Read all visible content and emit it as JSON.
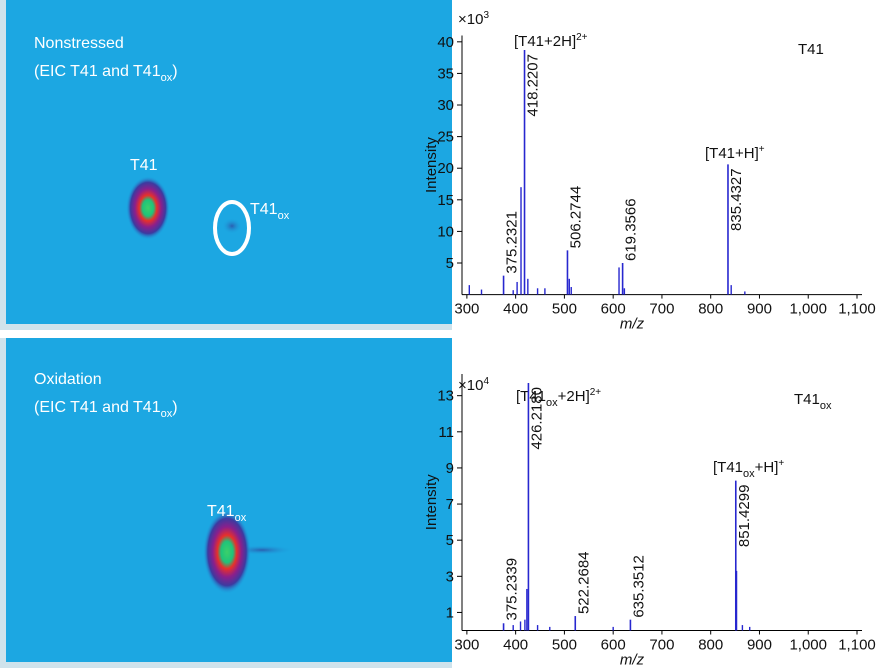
{
  "chart_data": [
    {
      "type": "image",
      "title": "Nonstressed",
      "subtitle": [
        "(EIC T41 and T41",
        "ox",
        ")"
      ],
      "labels": [
        [
          "T41"
        ],
        [
          "T41",
          "ox"
        ]
      ]
    },
    {
      "type": "spectrum",
      "title": [
        "T41"
      ],
      "multiplier": [
        "×10",
        "3"
      ],
      "ylabel": "Intensity",
      "xlabel": "m/z",
      "annotations": [
        [
          "[T41+2H]",
          "2+"
        ],
        [
          "[T41+H]",
          "+"
        ]
      ],
      "x": [
        375.2321,
        418.2207,
        506.2744,
        619.3566,
        835.4327
      ],
      "values": [
        3,
        38.7,
        7,
        5,
        20.6
      ],
      "x_labels": [
        "375.2321",
        "418.2207",
        "506.2744",
        "619.3566",
        "835.4327"
      ],
      "minor_x": [
        305,
        330,
        395,
        403,
        411,
        425,
        445,
        460,
        510,
        514,
        612,
        623,
        842,
        870
      ],
      "minor_values": [
        1.5,
        0.8,
        0.7,
        2,
        17,
        2.5,
        1,
        1,
        2.5,
        1.2,
        4.3,
        1,
        1.5,
        0.5
      ],
      "color": "#2727cf",
      "xlim": [
        290,
        1100
      ],
      "ylim": [
        0,
        41
      ],
      "xticks": [
        300,
        400,
        500,
        600,
        700,
        800,
        900,
        {
          "value": 1000,
          "label": "1,000"
        },
        {
          "value": 1100,
          "label": "1,100"
        }
      ],
      "yticks": [
        5,
        10,
        15,
        20,
        25,
        30,
        35,
        40
      ]
    },
    {
      "type": "image",
      "title": "Oxidation",
      "subtitle": [
        "(EIC T41 and T41",
        "ox",
        ")"
      ],
      "labels": [
        [
          "T41",
          "ox"
        ]
      ]
    },
    {
      "type": "spectrum",
      "title": [
        "T41",
        "ox"
      ],
      "multiplier": [
        "×10",
        "4"
      ],
      "ylabel": "Intensity",
      "xlabel": "m/z",
      "annotations": [
        [
          "[T41",
          "ox",
          "+2H]",
          "2+"
        ],
        [
          "[T41",
          "ox",
          "+H]",
          "+"
        ]
      ],
      "x": [
        375.2339,
        426.218,
        522.2684,
        635.3512,
        851.4299
      ],
      "values": [
        0.4,
        13.7,
        0.8,
        0.6,
        8.3
      ],
      "x_labels": [
        "375.2339",
        "426.2180",
        "522.2684",
        "635.3512",
        "851.4299"
      ],
      "minor_x": [
        395,
        410,
        419,
        423,
        445,
        470,
        600,
        853,
        865,
        880
      ],
      "minor_values": [
        0.3,
        0.5,
        0.6,
        2.3,
        0.3,
        0.2,
        0.2,
        3.3,
        0.3,
        0.2
      ],
      "color": "#2727cf",
      "xlim": [
        290,
        1100
      ],
      "ylim": [
        0,
        14.2
      ],
      "xticks": [
        300,
        400,
        500,
        600,
        700,
        800,
        900,
        {
          "value": 1000,
          "label": "1,000"
        },
        {
          "value": 1100,
          "label": "1,100"
        }
      ],
      "yticks": [
        1,
        3,
        5,
        7,
        9,
        11,
        13
      ]
    }
  ]
}
